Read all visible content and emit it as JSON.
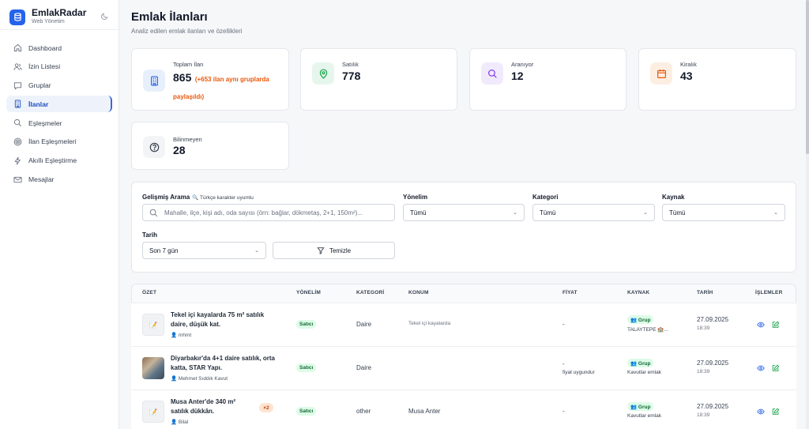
{
  "app": {
    "name": "EmlakRadar",
    "subtitle": "Web Yönetim",
    "theme_icon": "moon-icon"
  },
  "sidebar": {
    "items": [
      {
        "label": "Dashboard",
        "icon": "home-icon"
      },
      {
        "label": "İzin Listesi",
        "icon": "users-icon"
      },
      {
        "label": "Gruplar",
        "icon": "chat-icon"
      },
      {
        "label": "İlanlar",
        "icon": "building-icon",
        "active": true
      },
      {
        "label": "Eşleşmeler",
        "icon": "search-icon"
      },
      {
        "label": "İlan Eşleşmeleri",
        "icon": "target-icon"
      },
      {
        "label": "Akıllı Eşleştirme",
        "icon": "bolt-icon"
      },
      {
        "label": "Mesajlar",
        "icon": "mail-icon"
      }
    ]
  },
  "page": {
    "title": "Emlak İlanları",
    "subtitle": "Analiz edilen emlak ilanları ve özellikleri"
  },
  "stats": [
    {
      "label": "Toplam İlan",
      "value": "865",
      "note": "(+653 ilan aynı gruplarda paylaşıldı)",
      "icon": "building-icon",
      "color": "#2563eb"
    },
    {
      "label": "Satılık",
      "value": "778",
      "icon": "map-pin-icon",
      "color": "#16a34a"
    },
    {
      "label": "Aranıyor",
      "value": "12",
      "icon": "search-icon",
      "color": "#7c3aed"
    },
    {
      "label": "Kiralık",
      "value": "43",
      "icon": "calendar-icon",
      "color": "#ea580c"
    },
    {
      "label": "Bilinmeyen",
      "value": "28",
      "icon": "question-icon",
      "color": "#374151"
    }
  ],
  "filters": {
    "search_label": "Gelişmiş Arama",
    "search_hint": "🔍 Türkçe karakter uyumlu",
    "search_placeholder": "Mahalle, ilçe, kişi adı, oda sayısı (örn: bağlar, dökmetaş, 2+1, 150m²)...",
    "direction_label": "Yönelim",
    "direction_value": "Tümü",
    "category_label": "Kategori",
    "category_value": "Tümü",
    "source_label": "Kaynak",
    "source_value": "Tümü",
    "date_label": "Tarih",
    "date_value": "Son 7 gün",
    "clear_label": "Temizle"
  },
  "table": {
    "columns": [
      "ÖZET",
      "YÖNELİM",
      "KATEGORİ",
      "KONUM",
      "FİYAT",
      "KAYNAK",
      "TARİH",
      "İŞLEMLER"
    ],
    "rows": [
      {
        "title": "Tekel içi kayalarda 75 m² satılık daire, düşük kat.",
        "user": "👤 mhmt",
        "thumb": "note",
        "dup": "",
        "direction": "Satıcı",
        "category": "Daire",
        "location": "Tekel içi kayalarda",
        "location_small": true,
        "price": "-",
        "price_note": "",
        "source_badge": "👥 Grup",
        "source_name": "TALAYTEPE 🏫...",
        "date": "27.09.2025",
        "time": "18:39"
      },
      {
        "title": "Diyarbakır'da 4+1 daire satılık, orta katta, STAR Yapı.",
        "user": "👤 Mehmet Sıddık Kavut",
        "thumb": "photo",
        "dup": "",
        "direction": "Satıcı",
        "category": "Daire",
        "location": "",
        "location_small": false,
        "price": "-",
        "price_note": "fiyat uygundur",
        "source_badge": "👥 Grup",
        "source_name": "Kavutlar emlak",
        "date": "27.09.2025",
        "time": "18:39"
      },
      {
        "title": "Musa Anter'de 340 m² satılık dükkân.",
        "user": "👤 Bilal",
        "thumb": "note",
        "dup": "×2",
        "direction": "Satıcı",
        "category": "other",
        "location": "Musa Anter",
        "location_small": false,
        "price": "-",
        "price_note": "",
        "source_badge": "👥 Grup",
        "source_name": "Kavutlar emlak",
        "date": "27.09.2025",
        "time": "18:39"
      }
    ]
  }
}
